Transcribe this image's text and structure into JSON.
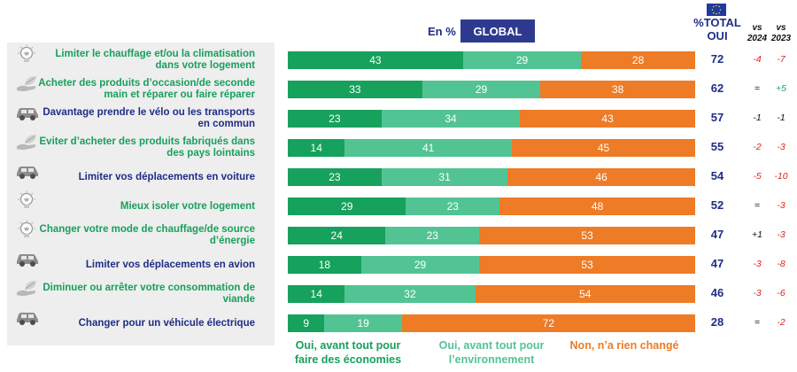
{
  "header": {
    "unit_label": "En %",
    "segment_label": "GLOBAL",
    "total_line1": "%TOTAL",
    "total_line2": "OUI",
    "vs1_line1": "vs",
    "vs1_line2": "2024",
    "vs2_line1": "vs",
    "vs2_line2": "2023"
  },
  "legend": {
    "economies_line1": "Oui, avant tout pour",
    "economies_line2": "faire des économies",
    "environnement_line1": "Oui, avant tout pour",
    "environnement_line2": "l’environnement",
    "non": "Non, n’a rien changé"
  },
  "colors": {
    "economies": "#16a15c",
    "environnement": "#52c494",
    "non": "#ee7b26",
    "label_green": "#18a05c",
    "label_blue": "#1f2d86",
    "delta_red": "#e02020",
    "delta_green": "#18a05c",
    "delta_black": "#111111"
  },
  "chart_data": {
    "type": "bar",
    "stacked": true,
    "orientation": "horizontal",
    "xlim": [
      0,
      100
    ],
    "categories": [
      "Limiter le chauffage et/ou la climatisation dans votre logement",
      "Acheter des produits d’occasion/de seconde main et réparer ou faire réparer",
      "Davantage prendre le vélo ou les transports en commun",
      "Eviter d’acheter des produits fabriqués dans des pays lointains",
      "Limiter vos déplacements en voiture",
      "Mieux isoler votre logement",
      "Changer votre mode de chauffage/de source d’énergie",
      "Limiter vos déplacements en avion",
      "Diminuer ou arrêter votre consommation de viande",
      "Changer pour un véhicule électrique"
    ],
    "series": [
      {
        "name": "Oui, avant tout pour faire des économies",
        "values": [
          43,
          33,
          23,
          14,
          23,
          29,
          24,
          18,
          14,
          9
        ]
      },
      {
        "name": "Oui, avant tout pour l’environnement",
        "values": [
          29,
          29,
          34,
          41,
          31,
          23,
          23,
          29,
          32,
          19
        ]
      },
      {
        "name": "Non, n’a rien changé",
        "values": [
          28,
          38,
          43,
          45,
          46,
          48,
          53,
          53,
          54,
          72
        ]
      }
    ],
    "total_oui": [
      72,
      62,
      57,
      55,
      54,
      52,
      47,
      47,
      46,
      28
    ],
    "vs_2024": [
      "-4",
      "=",
      "-1",
      "-2",
      "-5",
      "=",
      "+1",
      "-3",
      "-3",
      "="
    ],
    "vs_2023": [
      "-7",
      "+5",
      "-1",
      "-3",
      "-10",
      "-3",
      "-3",
      "-8",
      "-6",
      "-2"
    ],
    "label_colors": [
      "green",
      "green",
      "blue",
      "green",
      "blue",
      "green",
      "green",
      "blue",
      "green",
      "blue"
    ],
    "icons": [
      "lightbulb-icon",
      "leaf-hand-icon",
      "car-icon",
      "leaf-hand-icon",
      "car-icon",
      "lightbulb-icon",
      "lightbulb-icon",
      "car-icon",
      "leaf-hand-icon",
      "car-icon"
    ]
  }
}
